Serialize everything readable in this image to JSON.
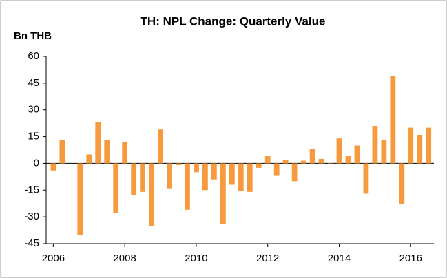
{
  "chart_data": {
    "type": "bar",
    "title": "TH: NPL Change: Quarterly Value",
    "y_label": "Bn THB",
    "x": [
      2006,
      2006.25,
      2006.5,
      2006.75,
      2007,
      2007.25,
      2007.5,
      2007.75,
      2008,
      2008.25,
      2008.5,
      2008.75,
      2009,
      2009.25,
      2009.5,
      2009.75,
      2010,
      2010.25,
      2010.5,
      2010.75,
      2011,
      2011.25,
      2011.5,
      2011.75,
      2012,
      2012.25,
      2012.5,
      2012.75,
      2013,
      2013.25,
      2013.5,
      2013.75,
      2014,
      2014.25,
      2014.5,
      2014.75,
      2015,
      2015.25,
      2015.5,
      2015.75,
      2016,
      2016.25,
      2016.5
    ],
    "values": [
      -4,
      13,
      0,
      -40,
      5,
      23,
      13,
      -28,
      12,
      -18,
      -16,
      -35,
      19,
      -14,
      -1,
      -26,
      -5,
      -15,
      -9,
      -34,
      -12,
      -15.5,
      -16,
      -2.5,
      4,
      -7,
      2,
      -10,
      1.5,
      8,
      2.5,
      -0.5,
      14,
      4,
      10,
      -17,
      21,
      13,
      49,
      -23,
      20,
      16,
      20
    ],
    "color": "#f79a3e",
    "xlim": [
      2005.8,
      2016.65
    ],
    "xticks": [
      2006,
      2008,
      2010,
      2012,
      2014,
      2016
    ],
    "ylim": [
      -45,
      60
    ],
    "yticks": [
      -45,
      -30,
      -15,
      0,
      15,
      30,
      45,
      60
    ]
  }
}
